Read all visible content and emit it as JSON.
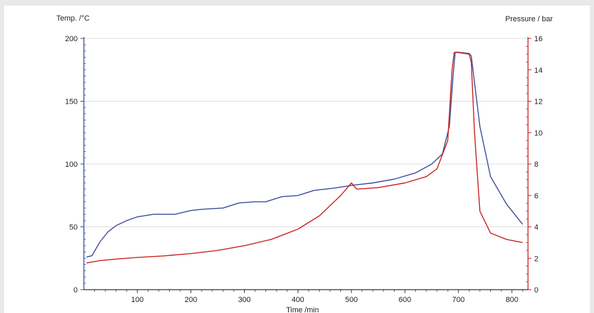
{
  "chart_data": {
    "type": "line",
    "title": "",
    "xlabel": "Time /min",
    "ylabel_left": "Temp. /°C",
    "ylabel_right": "Pressure / bar",
    "xlim": [
      0,
      830
    ],
    "ylim_left": [
      0,
      200
    ],
    "ylim_right": [
      0,
      16
    ],
    "x_ticks": [
      100,
      200,
      300,
      400,
      500,
      600,
      700,
      800
    ],
    "y_left_ticks": [
      0,
      50,
      100,
      150,
      200
    ],
    "y_right_ticks": [
      0,
      2,
      4,
      6,
      8,
      10,
      12,
      14,
      16
    ],
    "grid": "horizontal at left-axis ticks",
    "left_axis_color": "#3a4a9a",
    "right_axis_color": "#c8201e",
    "series": [
      {
        "axis": "left",
        "color": "#3a4a9a",
        "x": [
          5,
          15,
          30,
          45,
          60,
          80,
          100,
          130,
          170,
          200,
          220,
          260,
          290,
          320,
          340,
          370,
          400,
          430,
          470,
          500,
          540,
          580,
          620,
          650,
          670,
          683,
          690,
          694,
          700,
          720,
          724,
          740,
          760,
          790,
          820
        ],
        "y": [
          26,
          27,
          38,
          46,
          51,
          55,
          58,
          60,
          60,
          63,
          64,
          65,
          69,
          70,
          70,
          74,
          75,
          79,
          81,
          83,
          85,
          88,
          93,
          100,
          108,
          130,
          170,
          189,
          189,
          188,
          186,
          130,
          90,
          68,
          52
        ]
      },
      {
        "axis": "right",
        "color": "#c8201e",
        "x": [
          5,
          30,
          60,
          100,
          150,
          200,
          250,
          300,
          350,
          400,
          440,
          480,
          500,
          505,
          510,
          550,
          600,
          640,
          660,
          680,
          688,
          692,
          700,
          720,
          724,
          730,
          740,
          760,
          790,
          820
        ],
        "y": [
          1.7,
          1.85,
          1.95,
          2.05,
          2.15,
          2.3,
          2.5,
          2.8,
          3.2,
          3.85,
          4.7,
          6.0,
          6.8,
          6.6,
          6.4,
          6.5,
          6.8,
          7.2,
          7.7,
          9.5,
          14.0,
          15.1,
          15.1,
          15.0,
          14.5,
          10.0,
          5.0,
          3.6,
          3.2,
          3.0
        ]
      }
    ]
  }
}
